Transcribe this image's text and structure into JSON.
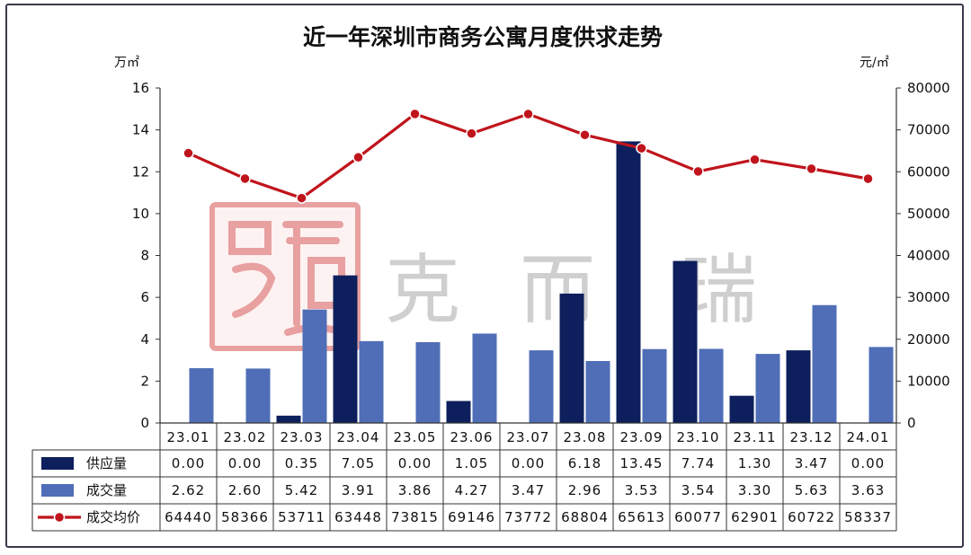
{
  "chart_data": {
    "type": "bar-line-combo",
    "title": "近一年深圳市商务公寓月度供求走势",
    "left_axis_unit": "万㎡",
    "right_axis_unit": "元/㎡",
    "left_ylim": [
      0,
      16
    ],
    "left_ticks": [
      "0",
      "2",
      "4",
      "6",
      "8",
      "10",
      "12",
      "14",
      "16"
    ],
    "right_ylim": [
      0,
      80000
    ],
    "right_ticks": [
      "0",
      "10000",
      "20000",
      "30000",
      "40000",
      "50000",
      "60000",
      "70000",
      "80000"
    ],
    "categories": [
      "23.01",
      "23.02",
      "23.03",
      "23.04",
      "23.05",
      "23.06",
      "23.07",
      "23.08",
      "23.09",
      "23.10",
      "23.11",
      "23.12",
      "24.01"
    ],
    "series": [
      {
        "name": "供应量",
        "type": "bar",
        "axis": "left",
        "color": "#0d1f5c",
        "values": [
          0.0,
          0.0,
          0.35,
          7.05,
          0.0,
          1.05,
          0.0,
          6.18,
          13.45,
          7.74,
          1.3,
          3.47,
          0.0
        ],
        "labels": [
          "0.00",
          "0.00",
          "0.35",
          "7.05",
          "0.00",
          "1.05",
          "0.00",
          "6.18",
          "13.45",
          "7.74",
          "1.30",
          "3.47",
          "0.00"
        ]
      },
      {
        "name": "成交量",
        "type": "bar",
        "axis": "left",
        "color": "#4f6eb7",
        "values": [
          2.62,
          2.6,
          5.42,
          3.91,
          3.86,
          4.27,
          3.47,
          2.96,
          3.53,
          3.54,
          3.3,
          5.63,
          3.63
        ],
        "labels": [
          "2.62",
          "2.60",
          "5.42",
          "3.91",
          "3.86",
          "4.27",
          "3.47",
          "2.96",
          "3.53",
          "3.54",
          "3.30",
          "5.63",
          "3.63"
        ]
      },
      {
        "name": "成交均价",
        "type": "line",
        "axis": "right",
        "color": "#c0141c",
        "values": [
          64440,
          58366,
          53711,
          63448,
          73815,
          69146,
          73772,
          68804,
          65613,
          60077,
          62901,
          60722,
          58337
        ],
        "labels": [
          "64440",
          "58366",
          "53711",
          "63448",
          "73815",
          "69146",
          "73772",
          "68804",
          "65613",
          "60077",
          "62901",
          "60722",
          "58337"
        ]
      }
    ],
    "table": true,
    "grid": false
  },
  "watermark": {
    "brand": "克而瑞",
    "chars": [
      "克",
      "而",
      "瑞"
    ],
    "seal_color": "#e8a0a0"
  }
}
